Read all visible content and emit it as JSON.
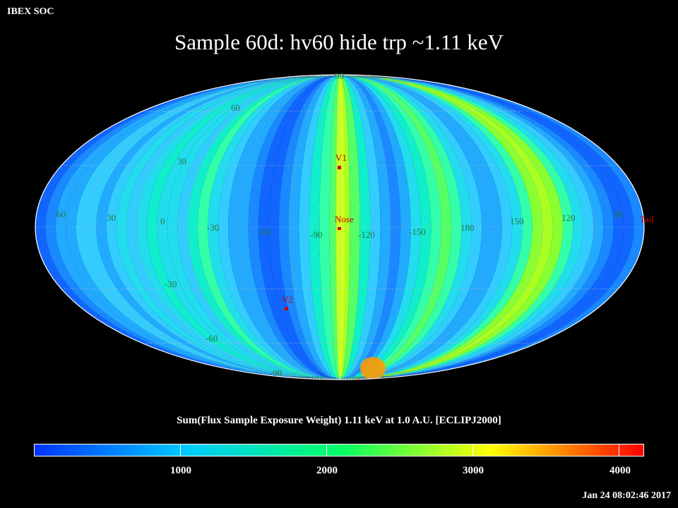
{
  "header": {
    "corner_label": "IBEX SOC",
    "title": "Sample 60d: hv60 hide trp ~1.11 keV"
  },
  "map": {
    "projection": "Mollweide (all-sky, ecliptic)",
    "latitude_labels": [
      "90",
      "60",
      "30",
      "-30",
      "-60",
      "-90"
    ],
    "longitude_labels": [
      "60",
      "30",
      "0",
      "-30",
      "-60",
      "-90",
      "-120",
      "-150",
      "180",
      "150",
      "120",
      "90"
    ],
    "markers": [
      {
        "label": "V1"
      },
      {
        "label": "Nose"
      },
      {
        "label": "V2"
      },
      {
        "label": "Tail"
      }
    ],
    "marker_color": "#cc0000"
  },
  "colorbar": {
    "label": "Sum(Flux Sample Exposure Weight)  1.11 keV at 1.0 A.U. [ECLIPJ2000]",
    "ticks": [
      "1000",
      "2000",
      "3000",
      "4000"
    ],
    "colors": [
      "#0033ff",
      "#00ccff",
      "#00ff66",
      "#ffff00",
      "#ff0000"
    ]
  },
  "footer": {
    "timestamp": "Jan 24 08:02:46 2017"
  }
}
